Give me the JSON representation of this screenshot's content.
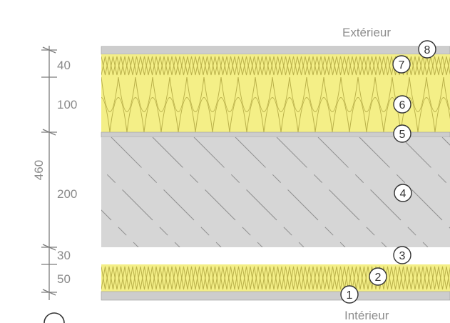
{
  "labels": {
    "exterior": "Extérieur",
    "interior": "Intérieur"
  },
  "dimensions": {
    "total": "460",
    "d40": "40",
    "d100": "100",
    "d200": "200",
    "d30": "30",
    "d50": "50"
  },
  "layers": [
    {
      "number": "1"
    },
    {
      "number": "2"
    },
    {
      "number": "3"
    },
    {
      "number": "4"
    },
    {
      "number": "5"
    },
    {
      "number": "6"
    },
    {
      "number": "7"
    },
    {
      "number": "8"
    }
  ],
  "colors": {
    "insulation": "#f4ef87",
    "insulation_stroke": "#b9b04a",
    "concrete": "#d6d6d6",
    "concrete_hatch": "#8f8f8f",
    "board": "#cdcdcd",
    "line": "#7c7c7c"
  }
}
